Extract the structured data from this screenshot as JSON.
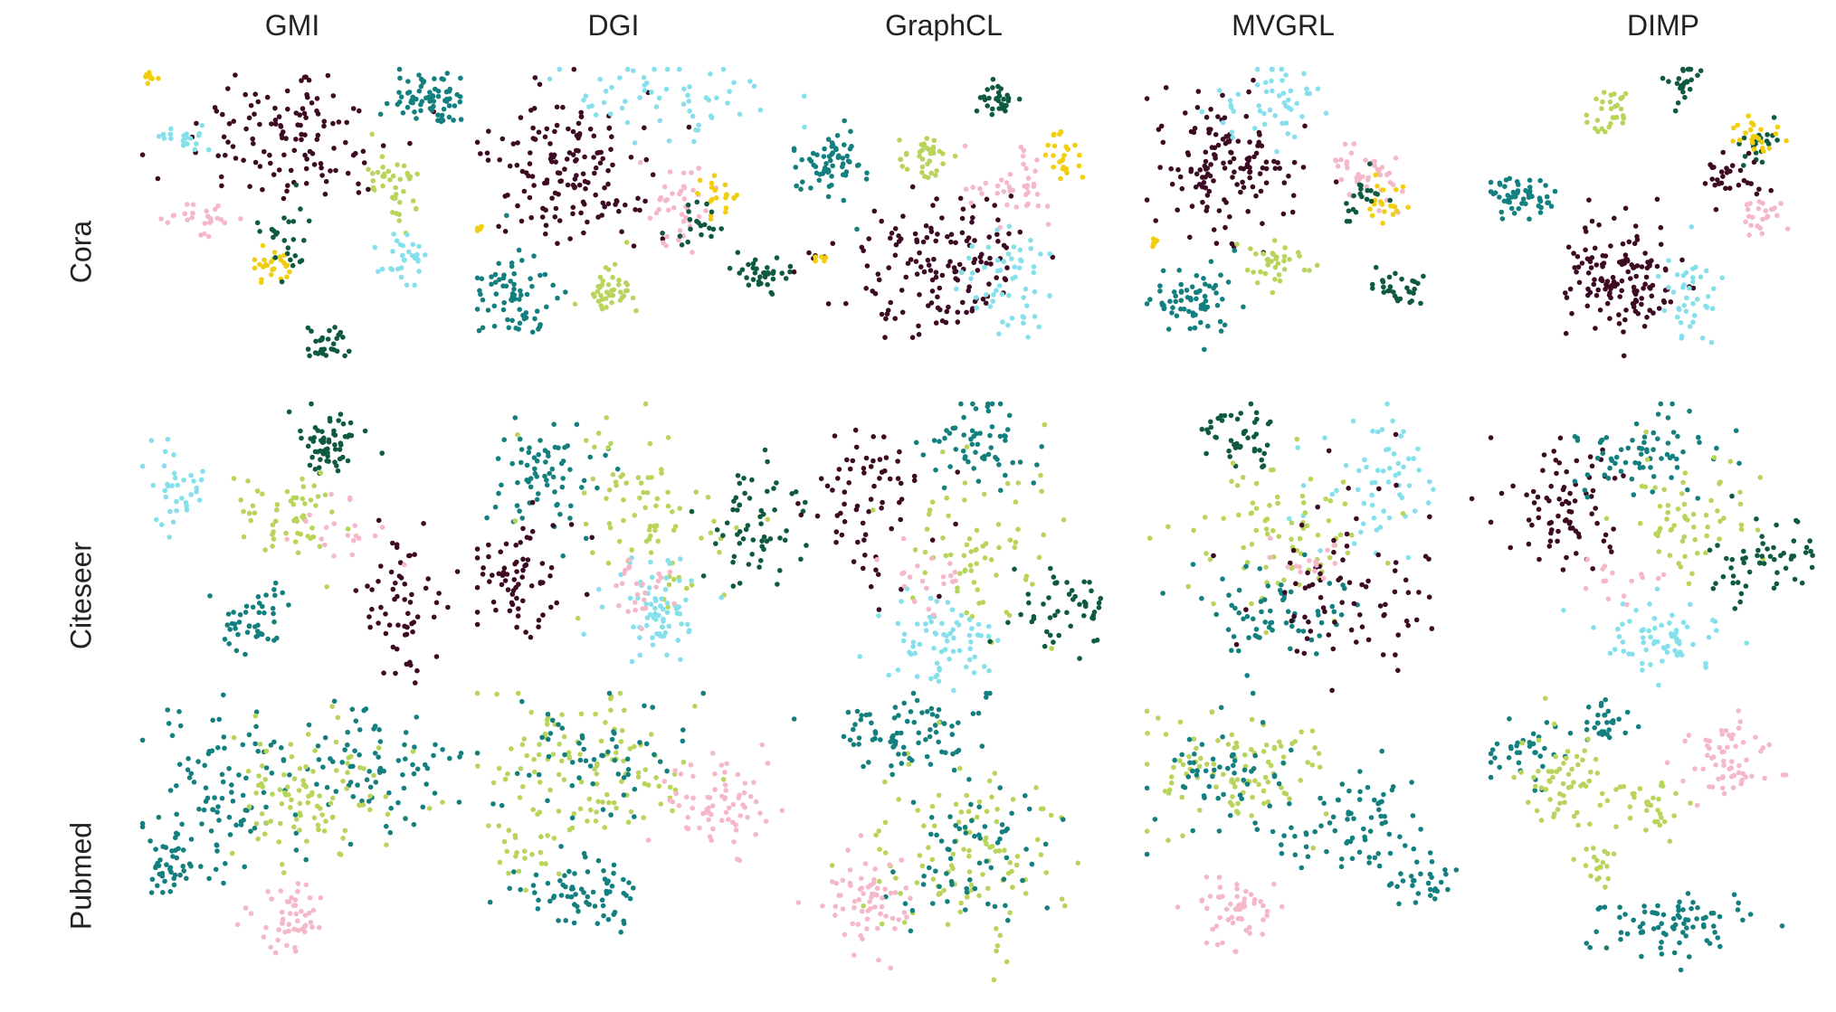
{
  "columns": [
    "GMI",
    "DGI",
    "GraphCL",
    "MVGRL",
    "DIMP"
  ],
  "rows": [
    "Cora",
    "Citeseer",
    "Pubmed"
  ],
  "class_colors": {
    "maroon": "#3d0a24",
    "teal": "#147f7f",
    "dark_green": "#0f5a3e",
    "light_green": "#b9d45a",
    "cyan": "#86e0ec",
    "pink": "#f4b8c8",
    "yellow": "#f1cf10"
  },
  "chart_data": [
    {
      "type": "scatter",
      "dataset": "Cora",
      "method": "GMI",
      "clusters": [
        {
          "class": "maroon",
          "cx": 0.45,
          "cy": 0.25,
          "sx": 0.15,
          "sy": 0.12,
          "n": 120
        },
        {
          "class": "teal",
          "cx": 0.86,
          "cy": 0.12,
          "sx": 0.06,
          "sy": 0.05,
          "n": 70
        },
        {
          "class": "light_green",
          "cx": 0.75,
          "cy": 0.4,
          "sx": 0.04,
          "sy": 0.07,
          "n": 40
        },
        {
          "class": "cyan",
          "cx": 0.77,
          "cy": 0.65,
          "sx": 0.03,
          "sy": 0.04,
          "n": 30
        },
        {
          "class": "cyan",
          "cx": 0.15,
          "cy": 0.25,
          "sx": 0.04,
          "sy": 0.04,
          "n": 20
        },
        {
          "class": "pink",
          "cx": 0.2,
          "cy": 0.52,
          "sx": 0.05,
          "sy": 0.03,
          "n": 25
        },
        {
          "class": "yellow",
          "cx": 0.4,
          "cy": 0.68,
          "sx": 0.04,
          "sy": 0.03,
          "n": 25
        },
        {
          "class": "yellow",
          "cx": 0.05,
          "cy": 0.05,
          "sx": 0.01,
          "sy": 0.01,
          "n": 8
        },
        {
          "class": "dark_green",
          "cx": 0.55,
          "cy": 0.94,
          "sx": 0.03,
          "sy": 0.03,
          "n": 30
        },
        {
          "class": "dark_green",
          "cx": 0.43,
          "cy": 0.58,
          "sx": 0.04,
          "sy": 0.06,
          "n": 25
        }
      ]
    },
    {
      "type": "scatter",
      "dataset": "Cora",
      "method": "DGI",
      "clusters": [
        {
          "class": "maroon",
          "cx": 0.3,
          "cy": 0.35,
          "sx": 0.12,
          "sy": 0.12,
          "n": 150
        },
        {
          "class": "cyan",
          "cx": 0.55,
          "cy": 0.12,
          "sx": 0.14,
          "sy": 0.07,
          "n": 60
        },
        {
          "class": "teal",
          "cx": 0.13,
          "cy": 0.78,
          "sx": 0.05,
          "sy": 0.07,
          "n": 70
        },
        {
          "class": "light_green",
          "cx": 0.4,
          "cy": 0.75,
          "sx": 0.04,
          "sy": 0.05,
          "n": 40
        },
        {
          "class": "pink",
          "cx": 0.6,
          "cy": 0.48,
          "sx": 0.06,
          "sy": 0.07,
          "n": 40
        },
        {
          "class": "yellow",
          "cx": 0.73,
          "cy": 0.45,
          "sx": 0.03,
          "sy": 0.03,
          "n": 20
        },
        {
          "class": "yellow",
          "cx": 0.03,
          "cy": 0.55,
          "sx": 0.01,
          "sy": 0.01,
          "n": 5
        },
        {
          "class": "dark_green",
          "cx": 0.84,
          "cy": 0.7,
          "sx": 0.04,
          "sy": 0.03,
          "n": 35
        },
        {
          "class": "dark_green",
          "cx": 0.66,
          "cy": 0.52,
          "sx": 0.04,
          "sy": 0.05,
          "n": 20
        }
      ]
    },
    {
      "type": "scatter",
      "dataset": "Cora",
      "method": "GraphCL",
      "clusters": [
        {
          "class": "teal",
          "cx": 0.12,
          "cy": 0.35,
          "sx": 0.05,
          "sy": 0.06,
          "n": 65
        },
        {
          "class": "dark_green",
          "cx": 0.62,
          "cy": 0.12,
          "sx": 0.03,
          "sy": 0.03,
          "n": 30
        },
        {
          "class": "light_green",
          "cx": 0.4,
          "cy": 0.32,
          "sx": 0.04,
          "sy": 0.04,
          "n": 35
        },
        {
          "class": "maroon",
          "cx": 0.45,
          "cy": 0.67,
          "sx": 0.14,
          "sy": 0.12,
          "n": 150
        },
        {
          "class": "cyan",
          "cx": 0.65,
          "cy": 0.75,
          "sx": 0.07,
          "sy": 0.1,
          "n": 55
        },
        {
          "class": "pink",
          "cx": 0.66,
          "cy": 0.42,
          "sx": 0.07,
          "sy": 0.06,
          "n": 40
        },
        {
          "class": "yellow",
          "cx": 0.8,
          "cy": 0.32,
          "sx": 0.03,
          "sy": 0.04,
          "n": 25
        },
        {
          "class": "yellow",
          "cx": 0.1,
          "cy": 0.65,
          "sx": 0.01,
          "sy": 0.01,
          "n": 6
        }
      ]
    },
    {
      "type": "scatter",
      "dataset": "Cora",
      "method": "MVGRL",
      "clusters": [
        {
          "class": "maroon",
          "cx": 0.25,
          "cy": 0.35,
          "sx": 0.1,
          "sy": 0.11,
          "n": 140
        },
        {
          "class": "cyan",
          "cx": 0.38,
          "cy": 0.12,
          "sx": 0.09,
          "sy": 0.07,
          "n": 50
        },
        {
          "class": "teal",
          "cx": 0.15,
          "cy": 0.8,
          "sx": 0.06,
          "sy": 0.06,
          "n": 70
        },
        {
          "class": "light_green",
          "cx": 0.4,
          "cy": 0.68,
          "sx": 0.04,
          "sy": 0.04,
          "n": 35
        },
        {
          "class": "pink",
          "cx": 0.66,
          "cy": 0.35,
          "sx": 0.06,
          "sy": 0.06,
          "n": 40
        },
        {
          "class": "yellow",
          "cx": 0.72,
          "cy": 0.48,
          "sx": 0.03,
          "sy": 0.04,
          "n": 20
        },
        {
          "class": "yellow",
          "cx": 0.04,
          "cy": 0.6,
          "sx": 0.01,
          "sy": 0.01,
          "n": 6
        },
        {
          "class": "dark_green",
          "cx": 0.75,
          "cy": 0.75,
          "sx": 0.04,
          "sy": 0.03,
          "n": 30
        },
        {
          "class": "dark_green",
          "cx": 0.65,
          "cy": 0.46,
          "sx": 0.03,
          "sy": 0.05,
          "n": 20
        }
      ]
    },
    {
      "type": "scatter",
      "dataset": "Cora",
      "method": "DIMP",
      "clusters": [
        {
          "class": "teal",
          "cx": 0.1,
          "cy": 0.45,
          "sx": 0.05,
          "sy": 0.03,
          "n": 55
        },
        {
          "class": "dark_green",
          "cx": 0.58,
          "cy": 0.06,
          "sx": 0.02,
          "sy": 0.04,
          "n": 25
        },
        {
          "class": "dark_green",
          "cx": 0.8,
          "cy": 0.28,
          "sx": 0.03,
          "sy": 0.04,
          "n": 25
        },
        {
          "class": "light_green",
          "cx": 0.36,
          "cy": 0.16,
          "sx": 0.03,
          "sy": 0.04,
          "n": 30
        },
        {
          "class": "maroon",
          "cx": 0.4,
          "cy": 0.72,
          "sx": 0.08,
          "sy": 0.1,
          "n": 140
        },
        {
          "class": "maroon",
          "cx": 0.72,
          "cy": 0.38,
          "sx": 0.04,
          "sy": 0.04,
          "n": 30
        },
        {
          "class": "cyan",
          "cx": 0.6,
          "cy": 0.78,
          "sx": 0.04,
          "sy": 0.08,
          "n": 40
        },
        {
          "class": "yellow",
          "cx": 0.8,
          "cy": 0.25,
          "sx": 0.04,
          "sy": 0.03,
          "n": 25
        },
        {
          "class": "pink",
          "cx": 0.81,
          "cy": 0.52,
          "sx": 0.03,
          "sy": 0.03,
          "n": 25
        }
      ]
    },
    {
      "type": "scatter",
      "dataset": "Citeseer",
      "method": "GMI",
      "clusters": [
        {
          "class": "dark_green",
          "cx": 0.55,
          "cy": 0.15,
          "sx": 0.06,
          "sy": 0.06,
          "n": 60
        },
        {
          "class": "cyan",
          "cx": 0.12,
          "cy": 0.3,
          "sx": 0.05,
          "sy": 0.07,
          "n": 35
        },
        {
          "class": "teal",
          "cx": 0.35,
          "cy": 0.75,
          "sx": 0.05,
          "sy": 0.05,
          "n": 45
        },
        {
          "class": "maroon",
          "cx": 0.78,
          "cy": 0.7,
          "sx": 0.06,
          "sy": 0.14,
          "n": 60
        },
        {
          "class": "light_green",
          "cx": 0.45,
          "cy": 0.4,
          "sx": 0.08,
          "sy": 0.08,
          "n": 55
        },
        {
          "class": "pink",
          "cx": 0.6,
          "cy": 0.45,
          "sx": 0.05,
          "sy": 0.05,
          "n": 20
        }
      ]
    },
    {
      "type": "scatter",
      "dataset": "Citeseer",
      "method": "DGI",
      "clusters": [
        {
          "class": "teal",
          "cx": 0.2,
          "cy": 0.25,
          "sx": 0.1,
          "sy": 0.1,
          "n": 70
        },
        {
          "class": "maroon",
          "cx": 0.15,
          "cy": 0.6,
          "sx": 0.08,
          "sy": 0.1,
          "n": 70
        },
        {
          "class": "light_green",
          "cx": 0.5,
          "cy": 0.38,
          "sx": 0.12,
          "sy": 0.15,
          "n": 80
        },
        {
          "class": "dark_green",
          "cx": 0.82,
          "cy": 0.42,
          "sx": 0.07,
          "sy": 0.1,
          "n": 60
        },
        {
          "class": "cyan",
          "cx": 0.55,
          "cy": 0.72,
          "sx": 0.08,
          "sy": 0.09,
          "n": 70
        },
        {
          "class": "pink",
          "cx": 0.48,
          "cy": 0.62,
          "sx": 0.06,
          "sy": 0.06,
          "n": 25
        }
      ]
    },
    {
      "type": "scatter",
      "dataset": "Citeseer",
      "method": "GraphCL",
      "clusters": [
        {
          "class": "maroon",
          "cx": 0.25,
          "cy": 0.35,
          "sx": 0.1,
          "sy": 0.14,
          "n": 70
        },
        {
          "class": "teal",
          "cx": 0.55,
          "cy": 0.15,
          "sx": 0.08,
          "sy": 0.07,
          "n": 60
        },
        {
          "class": "light_green",
          "cx": 0.55,
          "cy": 0.5,
          "sx": 0.12,
          "sy": 0.12,
          "n": 70
        },
        {
          "class": "dark_green",
          "cx": 0.8,
          "cy": 0.7,
          "sx": 0.07,
          "sy": 0.07,
          "n": 50
        },
        {
          "class": "cyan",
          "cx": 0.45,
          "cy": 0.8,
          "sx": 0.09,
          "sy": 0.07,
          "n": 70
        },
        {
          "class": "pink",
          "cx": 0.4,
          "cy": 0.6,
          "sx": 0.06,
          "sy": 0.06,
          "n": 20
        }
      ]
    },
    {
      "type": "scatter",
      "dataset": "Citeseer",
      "method": "MVGRL",
      "clusters": [
        {
          "class": "dark_green",
          "cx": 0.3,
          "cy": 0.12,
          "sx": 0.06,
          "sy": 0.06,
          "n": 45
        },
        {
          "class": "cyan",
          "cx": 0.7,
          "cy": 0.28,
          "sx": 0.09,
          "sy": 0.1,
          "n": 60
        },
        {
          "class": "light_green",
          "cx": 0.4,
          "cy": 0.45,
          "sx": 0.14,
          "sy": 0.12,
          "n": 80
        },
        {
          "class": "teal",
          "cx": 0.4,
          "cy": 0.72,
          "sx": 0.1,
          "sy": 0.07,
          "n": 65
        },
        {
          "class": "maroon",
          "cx": 0.6,
          "cy": 0.65,
          "sx": 0.14,
          "sy": 0.15,
          "n": 80
        },
        {
          "class": "pink",
          "cx": 0.5,
          "cy": 0.55,
          "sx": 0.05,
          "sy": 0.05,
          "n": 15
        }
      ]
    },
    {
      "type": "scatter",
      "dataset": "Citeseer",
      "method": "DIMP",
      "clusters": [
        {
          "class": "maroon",
          "cx": 0.22,
          "cy": 0.38,
          "sx": 0.09,
          "sy": 0.1,
          "n": 80
        },
        {
          "class": "teal",
          "cx": 0.48,
          "cy": 0.2,
          "sx": 0.1,
          "sy": 0.08,
          "n": 70
        },
        {
          "class": "light_green",
          "cx": 0.6,
          "cy": 0.38,
          "sx": 0.1,
          "sy": 0.1,
          "n": 60
        },
        {
          "class": "dark_green",
          "cx": 0.82,
          "cy": 0.55,
          "sx": 0.07,
          "sy": 0.08,
          "n": 55
        },
        {
          "class": "cyan",
          "cx": 0.52,
          "cy": 0.8,
          "sx": 0.08,
          "sy": 0.06,
          "n": 65
        },
        {
          "class": "pink",
          "cx": 0.4,
          "cy": 0.62,
          "sx": 0.06,
          "sy": 0.05,
          "n": 15
        }
      ]
    },
    {
      "type": "scatter",
      "dataset": "Pubmed",
      "method": "GMI",
      "clusters": [
        {
          "class": "teal",
          "cx": 0.25,
          "cy": 0.35,
          "sx": 0.12,
          "sy": 0.14,
          "n": 100
        },
        {
          "class": "teal",
          "cx": 0.7,
          "cy": 0.25,
          "sx": 0.12,
          "sy": 0.1,
          "n": 80
        },
        {
          "class": "light_green",
          "cx": 0.5,
          "cy": 0.35,
          "sx": 0.12,
          "sy": 0.1,
          "n": 100
        },
        {
          "class": "pink",
          "cx": 0.45,
          "cy": 0.78,
          "sx": 0.05,
          "sy": 0.06,
          "n": 50
        },
        {
          "class": "teal",
          "cx": 0.1,
          "cy": 0.6,
          "sx": 0.03,
          "sy": 0.06,
          "n": 35
        }
      ]
    },
    {
      "type": "scatter",
      "dataset": "Pubmed",
      "method": "DGI",
      "clusters": [
        {
          "class": "light_green",
          "cx": 0.35,
          "cy": 0.25,
          "sx": 0.16,
          "sy": 0.12,
          "n": 110
        },
        {
          "class": "teal",
          "cx": 0.35,
          "cy": 0.25,
          "sx": 0.14,
          "sy": 0.1,
          "n": 60
        },
        {
          "class": "pink",
          "cx": 0.72,
          "cy": 0.4,
          "sx": 0.08,
          "sy": 0.07,
          "n": 70
        },
        {
          "class": "teal",
          "cx": 0.35,
          "cy": 0.7,
          "sx": 0.1,
          "sy": 0.06,
          "n": 70
        },
        {
          "class": "light_green",
          "cx": 0.15,
          "cy": 0.55,
          "sx": 0.05,
          "sy": 0.05,
          "n": 25
        }
      ]
    },
    {
      "type": "scatter",
      "dataset": "Pubmed",
      "method": "GraphCL",
      "clusters": [
        {
          "class": "teal",
          "cx": 0.35,
          "cy": 0.15,
          "sx": 0.12,
          "sy": 0.06,
          "n": 80
        },
        {
          "class": "light_green",
          "cx": 0.5,
          "cy": 0.55,
          "sx": 0.14,
          "sy": 0.16,
          "n": 110
        },
        {
          "class": "teal",
          "cx": 0.55,
          "cy": 0.55,
          "sx": 0.12,
          "sy": 0.14,
          "n": 70
        },
        {
          "class": "pink",
          "cx": 0.22,
          "cy": 0.72,
          "sx": 0.06,
          "sy": 0.08,
          "n": 65
        }
      ]
    },
    {
      "type": "scatter",
      "dataset": "Pubmed",
      "method": "MVGRL",
      "clusters": [
        {
          "class": "light_green",
          "cx": 0.3,
          "cy": 0.28,
          "sx": 0.12,
          "sy": 0.1,
          "n": 100
        },
        {
          "class": "teal",
          "cx": 0.25,
          "cy": 0.3,
          "sx": 0.1,
          "sy": 0.12,
          "n": 60
        },
        {
          "class": "teal",
          "cx": 0.65,
          "cy": 0.45,
          "sx": 0.1,
          "sy": 0.1,
          "n": 70
        },
        {
          "class": "teal",
          "cx": 0.82,
          "cy": 0.65,
          "sx": 0.05,
          "sy": 0.05,
          "n": 30
        },
        {
          "class": "pink",
          "cx": 0.28,
          "cy": 0.75,
          "sx": 0.06,
          "sy": 0.06,
          "n": 55
        }
      ]
    },
    {
      "type": "scatter",
      "dataset": "Pubmed",
      "method": "DIMP",
      "clusters": [
        {
          "class": "teal",
          "cx": 0.35,
          "cy": 0.12,
          "sx": 0.04,
          "sy": 0.04,
          "n": 30
        },
        {
          "class": "teal",
          "cx": 0.12,
          "cy": 0.22,
          "sx": 0.05,
          "sy": 0.06,
          "n": 35
        },
        {
          "class": "light_green",
          "cx": 0.22,
          "cy": 0.32,
          "sx": 0.06,
          "sy": 0.08,
          "n": 60
        },
        {
          "class": "pink",
          "cx": 0.7,
          "cy": 0.25,
          "sx": 0.06,
          "sy": 0.06,
          "n": 60
        },
        {
          "class": "light_green",
          "cx": 0.48,
          "cy": 0.4,
          "sx": 0.05,
          "sy": 0.05,
          "n": 30
        },
        {
          "class": "teal",
          "cx": 0.55,
          "cy": 0.8,
          "sx": 0.12,
          "sy": 0.05,
          "n": 80
        },
        {
          "class": "light_green",
          "cx": 0.33,
          "cy": 0.58,
          "sx": 0.03,
          "sy": 0.04,
          "n": 20
        }
      ]
    }
  ]
}
